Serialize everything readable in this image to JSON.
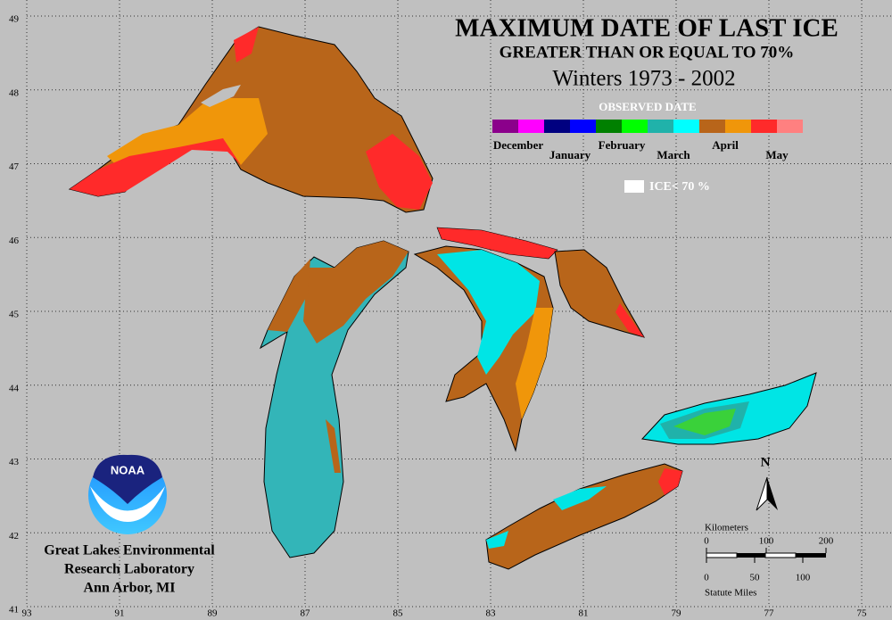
{
  "title": "MAXIMUM DATE OF LAST ICE",
  "subtitle": "GREATER THAN OR EQUAL TO 70%",
  "period": "Winters 1973 - 2002",
  "legend": {
    "title": "OBSERVED DATE",
    "months": [
      {
        "label": "December",
        "colors": [
          "#8b008b",
          "#ff00ff"
        ]
      },
      {
        "label": "January",
        "colors": [
          "#000080",
          "#0000ff"
        ]
      },
      {
        "label": "February",
        "colors": [
          "#008000",
          "#00ff00"
        ]
      },
      {
        "label": "March",
        "colors": [
          "#20b2aa",
          "#00ffff"
        ]
      },
      {
        "label": "April",
        "colors": [
          "#b8651a",
          "#f0960a"
        ]
      },
      {
        "label": "May",
        "colors": [
          "#ff2a2a",
          "#ff8080"
        ]
      }
    ],
    "ice_label": "ICE< 70 %"
  },
  "grid": {
    "longitudes": [
      93,
      91,
      89,
      87,
      85,
      83,
      81,
      79,
      77,
      75
    ],
    "latitudes": [
      49,
      48,
      47,
      46,
      45,
      44,
      43,
      42,
      41
    ]
  },
  "north": "N",
  "scale": {
    "km_label": "Kilometers",
    "km_ticks": [
      0,
      100,
      200
    ],
    "mi_label": "Statute Miles",
    "mi_ticks": [
      0,
      50,
      100
    ]
  },
  "logo": "NOAA",
  "credit": [
    "Great Lakes Environmental",
    "Research Laboratory",
    "Ann Arbor, MI"
  ]
}
